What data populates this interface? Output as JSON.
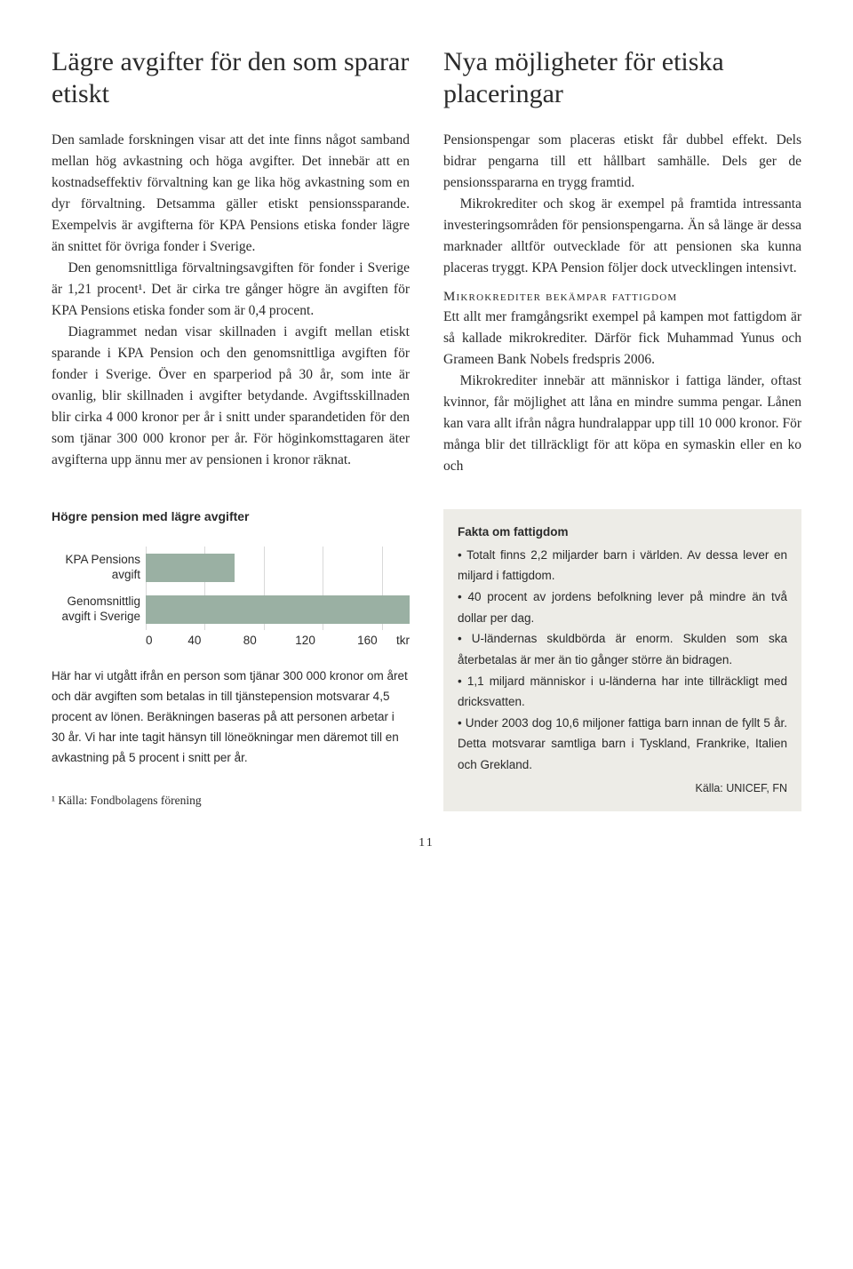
{
  "left": {
    "title": "Lägre avgifter för den som sparar etiskt",
    "paragraphs": [
      "Den samlade forskningen visar att det inte finns något samband mellan hög avkastning och höga avgifter. Det innebär att en kostnadseffektiv förvaltning kan ge lika hög avkastning som en dyr förvaltning. Detsamma gäller etiskt pensionssparande. Exempelvis är avgifterna för KPA Pensions etiska fonder lägre än snittet för övriga fonder i Sverige.",
      "Den genomsnittliga förvaltningsavgiften för fonder i Sverige är 1,21 procent¹. Det är cirka tre gånger högre än avgiften för KPA Pensions etiska fonder som är 0,4 procent.",
      "Diagrammet nedan visar skillnaden i avgift mellan etiskt sparande i KPA Pension och den genomsnittliga avgiften för fonder i Sverige. Över en sparperiod på 30 år, som inte är ovanlig, blir skillnaden i avgifter betydande. Avgiftsskillnaden blir cirka 4 000 kronor per år i snitt under sparandetiden för den som tjänar 300 000 kronor per år. För höginkomsttagaren äter avgifterna upp ännu mer av pensionen i kronor räknat."
    ]
  },
  "right": {
    "title": "Nya möjligheter för etiska placeringar",
    "paragraphs": [
      "Pensionspengar som placeras etiskt får dubbel effekt. Dels bidrar pengarna till ett hållbart samhälle. Dels ger de pensionsspararna en trygg framtid.",
      "Mikrokrediter och skog är exempel på framtida intressanta investeringsområden för pensionspengarna. Än så länge är dessa marknader alltför outvecklade för att pensionen ska kunna placeras tryggt. KPA Pension följer dock utvecklingen intensivt."
    ],
    "subhead": "MIKROKREDITER BEKÄMPAR FATTIGDOM",
    "paragraphs2": [
      "Ett allt mer framgångsrikt exempel på kampen mot fattigdom är så kallade mikrokrediter. Därför fick Muhammad Yunus och Grameen Bank Nobels fredspris 2006.",
      "Mikrokrediter innebär att människor i fattiga länder, oftast kvinnor, får möjlighet att låna en mindre summa pengar. Lånen kan vara allt ifrån några hundralappar upp till 10 000 kronor. För många blir det tillräckligt för att köpa en symaskin eller en ko och"
    ]
  },
  "chart": {
    "title": "Högre pension med lägre avgifter",
    "type": "bar-horizontal",
    "categories": [
      "KPA Pensions avgift",
      "Genomsnittlig avgift i Sverige"
    ],
    "values": [
      60,
      178
    ],
    "xlim": [
      0,
      178
    ],
    "xticks": [
      0,
      40,
      80,
      120,
      160
    ],
    "xunit": "tkr",
    "bar_color": "#9ab0a3",
    "grid_color": "#d9d9d9",
    "background_color": "#ffffff",
    "label_fontsize": 13.5,
    "caption": "Här har vi utgått ifrån en person som tjänar 300 000 kronor om året och där avgiften som betalas in till tjänstepension motsvarar 4,5 procent av lönen. Beräkningen baseras på att personen arbetar i 30 år. Vi har inte tagit hänsyn till löneökningar men däremot till en avkastning på 5 procent i snitt per år."
  },
  "factbox": {
    "title": "Fakta om fattigdom",
    "background": "#edece7",
    "items": [
      "Totalt finns 2,2 miljarder barn i världen. Av dessa lever en miljard i fattigdom.",
      "40 procent av jordens befolkning lever på mindre än två dollar per dag.",
      "U-ländernas skuldbörda är enorm. Skulden som ska återbetalas är mer än tio gånger större än bidragen.",
      "1,1 miljard människor i u-länderna har inte tillräckligt med dricksvatten.",
      "Under 2003 dog 10,6 miljoner fattiga barn innan de fyllt 5 år. Detta motsvarar samtliga barn i Tyskland, Frankrike, Italien och Grekland."
    ],
    "source": "Källa: UNICEF, FN"
  },
  "footnote": "¹ Källa: Fondbolagens förening",
  "page": "11"
}
